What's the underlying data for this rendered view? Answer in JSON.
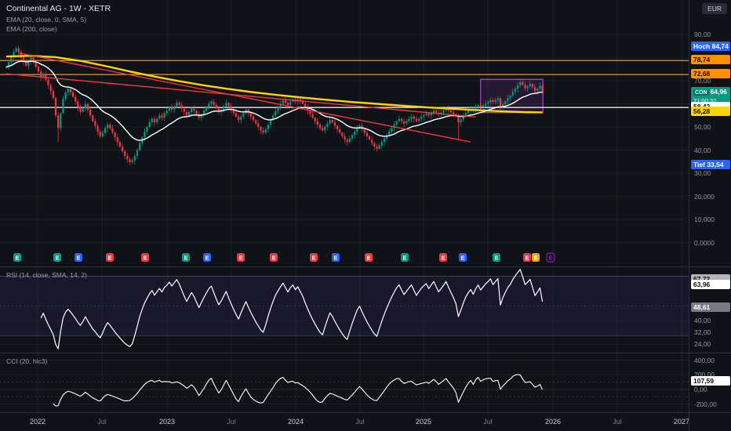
{
  "header": {
    "symbol_title": "Continental AG - 1W - XETR",
    "indicators": [
      "EMA (20, close, 0, SMA, 5)",
      "EMA (200, close)"
    ],
    "currency_button": "EUR"
  },
  "colors": {
    "up": "#089981",
    "down": "#f23645",
    "ema20": "#ffffff",
    "ema200": "#ffd400",
    "grid": "rgba(255,255,255,0.05)",
    "orange_line": "#ff9100",
    "white_line": "#ffffff",
    "trend_red": "#f23645",
    "box_purple": "#b244d6",
    "rsi_line": "#ffffff",
    "cci_line": "#ffffff",
    "band_fill": "rgba(124,77,255,0.09)",
    "band_line": "rgba(178,181,190,0.32)"
  },
  "chart_data": {
    "type": "candlestick",
    "title": "Continental AG - 1W - XETR",
    "symbol": "CON",
    "timeframe": "1W",
    "exchange": "XETR",
    "currency": "EUR",
    "price_pane": {
      "ylim": [
        0,
        92
      ],
      "high_value": 84.74,
      "low_value": 33.54,
      "last_close": 64.96,
      "grid_values": [
        90,
        80,
        70,
        60,
        50,
        40,
        30,
        20,
        10,
        0
      ],
      "y_ticks": [
        {
          "label": "90,00",
          "value": 90
        },
        {
          "label": "70,00",
          "value": 70
        },
        {
          "label": "50,00",
          "value": 50
        },
        {
          "label": "40,00",
          "value": 40
        },
        {
          "label": "30,00",
          "value": 30
        },
        {
          "label": "20,000",
          "value": 20
        },
        {
          "label": "10,000",
          "value": 10
        },
        {
          "label": "0,0000",
          "value": 0
        }
      ],
      "closes": [
        76.0,
        78.0,
        80.5,
        82.5,
        84.0,
        82.5,
        80.0,
        78.0,
        76.5,
        78.5,
        80.0,
        78.0,
        76.0,
        74.0,
        71.5,
        73.0,
        70.5,
        68.0,
        65.5,
        62.5,
        55.0,
        49.5,
        56.0,
        62.0,
        65.0,
        66.5,
        65.0,
        63.0,
        61.0,
        58.5,
        56.5,
        58.0,
        60.0,
        57.5,
        55.0,
        52.5,
        50.5,
        48.0,
        46.0,
        47.5,
        49.5,
        51.0,
        49.5,
        47.5,
        45.5,
        43.5,
        41.5,
        39.5,
        37.5,
        36.0,
        34.8,
        35.5,
        37.5,
        40.0,
        43.0,
        45.5,
        48.0,
        50.0,
        52.0,
        53.5,
        52.0,
        53.5,
        55.0,
        54.0,
        56.0,
        57.0,
        58.5,
        57.5,
        59.0,
        60.5,
        59.5,
        58.0,
        56.5,
        55.0,
        56.5,
        58.0,
        57.0,
        55.5,
        54.0,
        55.5,
        57.0,
        58.5,
        60.0,
        61.0,
        59.5,
        58.0,
        56.5,
        57.5,
        59.0,
        60.5,
        59.0,
        57.5,
        56.0,
        54.5,
        53.0,
        54.5,
        56.0,
        57.5,
        56.0,
        54.5,
        53.0,
        51.5,
        50.0,
        48.5,
        47.5,
        49.0,
        51.0,
        53.0,
        55.0,
        57.0,
        58.5,
        60.0,
        61.5,
        60.5,
        59.5,
        61.0,
        62.0,
        61.0,
        62.0,
        61.0,
        60.0,
        58.5,
        57.0,
        55.5,
        54.0,
        52.5,
        51.0,
        49.5,
        48.5,
        50.0,
        51.5,
        53.0,
        52.0,
        50.5,
        49.0,
        47.5,
        46.0,
        44.5,
        43.5,
        45.0,
        46.5,
        48.0,
        49.5,
        50.5,
        49.0,
        47.5,
        46.0,
        44.5,
        43.0,
        41.5,
        40.5,
        42.0,
        43.5,
        45.0,
        46.5,
        48.0,
        49.5,
        51.0,
        52.5,
        53.5,
        52.5,
        51.5,
        52.5,
        53.5,
        54.5,
        53.5,
        52.5,
        53.5,
        54.5,
        55.2,
        55.8,
        55.0,
        56.0,
        57.0,
        56.2,
        55.4,
        56.2,
        57.0,
        58.0,
        57.2,
        56.4,
        55.6,
        54.6,
        52.0,
        53.2,
        54.6,
        56.0,
        57.0,
        57.8,
        57.0,
        58.4,
        59.4,
        58.6,
        59.4,
        60.2,
        60.8,
        61.6,
        60.8,
        61.6,
        62.4,
        58.0,
        59.8,
        61.2,
        62.6,
        63.6,
        65.2,
        66.6,
        68.0,
        69.4,
        68.2,
        66.8,
        67.6,
        68.6,
        67.2,
        65.6,
        66.6,
        67.8,
        64.96
      ],
      "long_wicks": [
        {
          "week": 21,
          "low": 43.6
        },
        {
          "week": 183,
          "low": 44.0
        }
      ],
      "ema200_points": [
        [
          0,
          80.5
        ],
        [
          10,
          80.8
        ],
        [
          20,
          80.2
        ],
        [
          30,
          78.6
        ],
        [
          40,
          76.4
        ],
        [
          50,
          74.0
        ],
        [
          60,
          71.8
        ],
        [
          70,
          69.8
        ],
        [
          80,
          68.0
        ],
        [
          90,
          66.4
        ],
        [
          100,
          65.0
        ],
        [
          110,
          63.8
        ],
        [
          120,
          62.7
        ],
        [
          130,
          61.7
        ],
        [
          140,
          60.8
        ],
        [
          150,
          60.0
        ],
        [
          160,
          59.2
        ],
        [
          170,
          58.5
        ],
        [
          180,
          57.9
        ],
        [
          190,
          57.3
        ],
        [
          200,
          56.8
        ],
        [
          210,
          56.4
        ],
        [
          217,
          56.28
        ]
      ],
      "h_lines": [
        {
          "value": 78.74,
          "color": "#ff9100"
        },
        {
          "value": 72.68,
          "color": "#ff9100"
        },
        {
          "value": 58.42,
          "color": "#ffffff"
        }
      ],
      "trend_lines": [
        {
          "from": [
            0,
            73.0
          ],
          "to": [
            190,
            54.3
          ],
          "color": "#f23645"
        },
        {
          "from": [
            5,
            82.0
          ],
          "to": [
            188,
            43.5
          ],
          "color": "#f23645"
        }
      ],
      "highlight_box": {
        "from_week": 192,
        "to_week": 217.2,
        "top": 70.6,
        "bottom": 56.2
      },
      "axis_badges": [
        {
          "label": "Hoch 84,74",
          "value": 84.74,
          "bg": "#2962ff",
          "fg": "#ffffff",
          "name": "high-price-badge"
        },
        {
          "label": "78,74",
          "value": 78.74,
          "bg": "#ff9100",
          "fg": "#0b0b0b",
          "name": "hline-7874-badge"
        },
        {
          "label": "72,68",
          "value": 72.68,
          "bg": "#ff9100",
          "fg": "#0b0b0b",
          "name": "hline-7268-badge"
        },
        {
          "label": "64,96",
          "sub": "21:00:32",
          "tag": "CON",
          "value": 64.96,
          "bg": "#089981",
          "fg": "#ffffff",
          "name": "last-price-badge"
        },
        {
          "label": "58,42",
          "value": 58.42,
          "bg": "#ffffff",
          "fg": "#0b0b0b",
          "name": "ema20-value-badge"
        },
        {
          "label": "56,28",
          "value": 56.28,
          "bg": "#ffd400",
          "fg": "#0b0b0b",
          "name": "ema200-value-badge"
        },
        {
          "label": "Tief 33,54",
          "value": 33.54,
          "bg": "#2962ff",
          "fg": "#ffffff",
          "name": "low-price-badge"
        }
      ],
      "event_markers": [
        {
          "x": 22,
          "color": "#089981",
          "letter": "E"
        },
        {
          "x": 73,
          "color": "#089981",
          "letter": "E"
        },
        {
          "x": 100,
          "color": "#2962ff",
          "letter": "E"
        },
        {
          "x": 140,
          "color": "#f23645",
          "letter": "E"
        },
        {
          "x": 185,
          "color": "#f23645",
          "letter": "E"
        },
        {
          "x": 237,
          "color": "#089981",
          "letter": "E"
        },
        {
          "x": 264,
          "color": "#2962ff",
          "letter": "E"
        },
        {
          "x": 307,
          "color": "#f23645",
          "letter": "E"
        },
        {
          "x": 349,
          "color": "#f23645",
          "letter": "E"
        },
        {
          "x": 400,
          "color": "#f23645",
          "letter": "E"
        },
        {
          "x": 428,
          "color": "#2962ff",
          "letter": "E"
        },
        {
          "x": 470,
          "color": "#f23645",
          "letter": "E"
        },
        {
          "x": 516,
          "color": "#089981",
          "letter": "E"
        },
        {
          "x": 565,
          "color": "#f23645",
          "letter": "E"
        },
        {
          "x": 590,
          "color": "#2962ff",
          "letter": "E"
        },
        {
          "x": 633,
          "color": "#089981",
          "letter": "E"
        },
        {
          "x": 672,
          "color": "#f23645",
          "letter": "E"
        },
        {
          "x": 683,
          "color": "#f7a600",
          "letter": "E"
        },
        {
          "x": 702,
          "color": "#9c27b0",
          "letter": "E",
          "outline": true
        }
      ]
    },
    "rsi_pane": {
      "label": "RSI (14, close, SMA, 14, 2)",
      "range": [
        20,
        74
      ],
      "bands": {
        "upper": 70,
        "lower": 30,
        "middle": 50
      },
      "y_ticks": [
        {
          "label": "40,00",
          "value": 40
        },
        {
          "label": "32,00",
          "value": 32
        },
        {
          "label": "24,00",
          "value": 24
        }
      ],
      "axis_badges": [
        {
          "label": "67,72",
          "value": 67.72,
          "bg": "#b2b5be",
          "fg": "#0b0b0b",
          "name": "rsi-ma-badge"
        },
        {
          "label": "63,96",
          "value": 63.96,
          "bg": "#ffffff",
          "fg": "#0b0b0b",
          "name": "rsi-value-badge"
        },
        {
          "label": "48,61",
          "value": 48.61,
          "bg": "#787b86",
          "fg": "#ffffff",
          "name": "rsi-mid-badge"
        }
      ]
    },
    "cci_pane": {
      "label": "CCI (20, hlc3)",
      "range": [
        -280,
        470
      ],
      "y_ticks": [
        {
          "label": "400,00",
          "value": 400
        },
        {
          "label": "200,00",
          "value": 200
        },
        {
          "label": "0,00",
          "value": 0
        },
        {
          "label": "-200,00",
          "value": -200
        }
      ],
      "axis_badges": [
        {
          "label": "107,59",
          "value": 107.59,
          "bg": "#ffffff",
          "fg": "#0b0b0b",
          "name": "cci-value-badge"
        }
      ]
    },
    "time_axis": [
      {
        "label": "2022",
        "x": 48,
        "major": true
      },
      {
        "label": "Jul",
        "x": 130,
        "major": false
      },
      {
        "label": "2023",
        "x": 213,
        "major": true
      },
      {
        "label": "Jul",
        "x": 295,
        "major": false
      },
      {
        "label": "2024",
        "x": 377,
        "major": true
      },
      {
        "label": "Jul",
        "x": 459,
        "major": false
      },
      {
        "label": "2025",
        "x": 540,
        "major": true
      },
      {
        "label": "Jul",
        "x": 622,
        "major": false
      },
      {
        "label": "2026",
        "x": 705,
        "major": true
      },
      {
        "label": "Jul",
        "x": 787,
        "major": false
      },
      {
        "label": "2027",
        "x": 869,
        "major": true
      }
    ]
  }
}
